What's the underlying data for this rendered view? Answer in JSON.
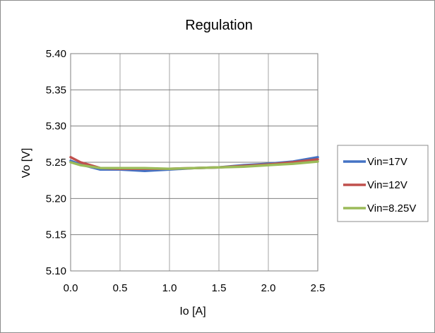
{
  "chart_data": {
    "type": "line",
    "title": "Regulation",
    "xlabel": "Io [A]",
    "ylabel": "Vo [V]",
    "xlim": [
      0.0,
      2.5
    ],
    "ylim": [
      5.1,
      5.4
    ],
    "xticks": [
      "0.0",
      "0.5",
      "1.0",
      "1.5",
      "2.0",
      "2.5"
    ],
    "yticks": [
      "5.10",
      "5.15",
      "5.20",
      "5.25",
      "5.30",
      "5.35",
      "5.40"
    ],
    "grid": true,
    "legend_position": "right",
    "series": [
      {
        "name": "Vin=17V",
        "color": "#4472c4",
        "points": [
          [
            0.0,
            5.252
          ],
          [
            0.1,
            5.247
          ],
          [
            0.3,
            5.24
          ],
          [
            0.5,
            5.24
          ],
          [
            0.75,
            5.238
          ],
          [
            1.0,
            5.24
          ],
          [
            1.25,
            5.242
          ],
          [
            1.5,
            5.243
          ],
          [
            1.75,
            5.246
          ],
          [
            2.0,
            5.248
          ],
          [
            2.25,
            5.251
          ],
          [
            2.5,
            5.257
          ]
        ]
      },
      {
        "name": "Vin=12V",
        "color": "#c0504d",
        "points": [
          [
            0.0,
            5.257
          ],
          [
            0.1,
            5.25
          ],
          [
            0.3,
            5.242
          ],
          [
            0.5,
            5.241
          ],
          [
            0.75,
            5.241
          ],
          [
            1.0,
            5.241
          ],
          [
            1.25,
            5.242
          ],
          [
            1.5,
            5.243
          ],
          [
            1.75,
            5.245
          ],
          [
            2.0,
            5.247
          ],
          [
            2.25,
            5.25
          ],
          [
            2.5,
            5.254
          ]
        ]
      },
      {
        "name": "Vin=8.25V",
        "color": "#9bbb59",
        "points": [
          [
            0.0,
            5.25
          ],
          [
            0.1,
            5.246
          ],
          [
            0.3,
            5.242
          ],
          [
            0.5,
            5.242
          ],
          [
            0.75,
            5.242
          ],
          [
            1.0,
            5.241
          ],
          [
            1.25,
            5.242
          ],
          [
            1.5,
            5.243
          ],
          [
            1.75,
            5.244
          ],
          [
            2.0,
            5.246
          ],
          [
            2.25,
            5.248
          ],
          [
            2.5,
            5.251
          ]
        ]
      }
    ]
  }
}
